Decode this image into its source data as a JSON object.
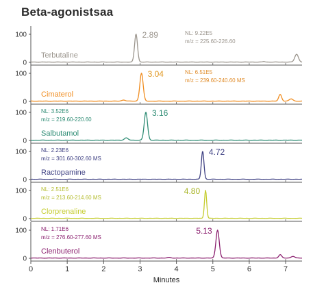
{
  "title": "Beta-agonistsaa",
  "chart_data": {
    "type": "line",
    "title": "Beta-agonistsaa",
    "xlabel": "Minutes",
    "xlim": [
      0,
      7.45
    ],
    "x_ticks": [
      0,
      1,
      2,
      3,
      4,
      5,
      6,
      7
    ],
    "y_ticks": [
      0,
      100
    ],
    "ylim": [
      0,
      105
    ],
    "panels": [
      {
        "name": "Terbutaline",
        "color": "#9a948c",
        "peak_label": "2.89",
        "peak_label_color": "#9a948c",
        "info_color": "#9a948c",
        "info_lines": [
          "NL: 9.22E5",
          "m/z = 225.60-226.60"
        ],
        "info_position": "right",
        "peaks": [
          [
            2.89,
            100,
            0.04
          ],
          [
            6.4,
            2,
            0.03
          ],
          [
            7.3,
            28,
            0.05
          ]
        ],
        "baseline": 1
      },
      {
        "name": "Cimaterol",
        "color": "#f08c1e",
        "peak_label": "3.04",
        "peak_label_color": "#e0961e",
        "info_color": "#e08c2a",
        "info_lines": [
          "NL: 6.51E5",
          "m/z = 239.60-240.60  MS"
        ],
        "info_position": "right",
        "peaks": [
          [
            3.04,
            100,
            0.045
          ],
          [
            2.55,
            4,
            0.05
          ],
          [
            6.85,
            24,
            0.04
          ],
          [
            7.15,
            8,
            0.05
          ]
        ],
        "baseline": 1
      },
      {
        "name": "Salbutamol",
        "color": "#2e8c74",
        "peak_label": "3.16",
        "peak_label_color": "#2e8c74",
        "info_color": "#2e8c74",
        "info_lines": [
          "NL: 3.52E6",
          "m/z = 219.60-220.60"
        ],
        "info_position": "left",
        "peaks": [
          [
            3.16,
            100,
            0.045
          ],
          [
            2.62,
            8,
            0.05
          ]
        ],
        "baseline": 1
      },
      {
        "name": "Ractopamine",
        "color": "#3d3f82",
        "peak_label": "4.72",
        "peak_label_color": "#3d3f82",
        "info_color": "#3d3f82",
        "info_lines": [
          "NL: 2.23E6",
          "m/z = 301.60-302.60  MS"
        ],
        "info_position": "left",
        "peaks": [
          [
            4.72,
            100,
            0.035
          ]
        ],
        "baseline": 1
      },
      {
        "name": "Clorprenaline",
        "color": "#c4cc2c",
        "peak_label": "4.80",
        "peak_label_color": "#a8b424",
        "info_color": "#b4bc2e",
        "info_lines": [
          "NL: 2.51E6",
          "m/z = 213.60-214.60  MS"
        ],
        "info_position": "left",
        "peaks": [
          [
            4.8,
            100,
            0.03
          ]
        ],
        "baseline": 1
      },
      {
        "name": "Clenbuterol",
        "color": "#8a1e6e",
        "peak_label": "5.13",
        "peak_label_color": "#8a1e6e",
        "info_color": "#8a1e6e",
        "info_lines": [
          "NL: 1.71E6",
          "m/z = 276.60-277.60  MS"
        ],
        "info_position": "left",
        "peaks": [
          [
            5.13,
            100,
            0.045
          ],
          [
            6.85,
            12,
            0.04
          ],
          [
            7.2,
            6,
            0.05
          ],
          [
            3.8,
            2,
            0.05
          ]
        ],
        "baseline": 1
      }
    ]
  }
}
